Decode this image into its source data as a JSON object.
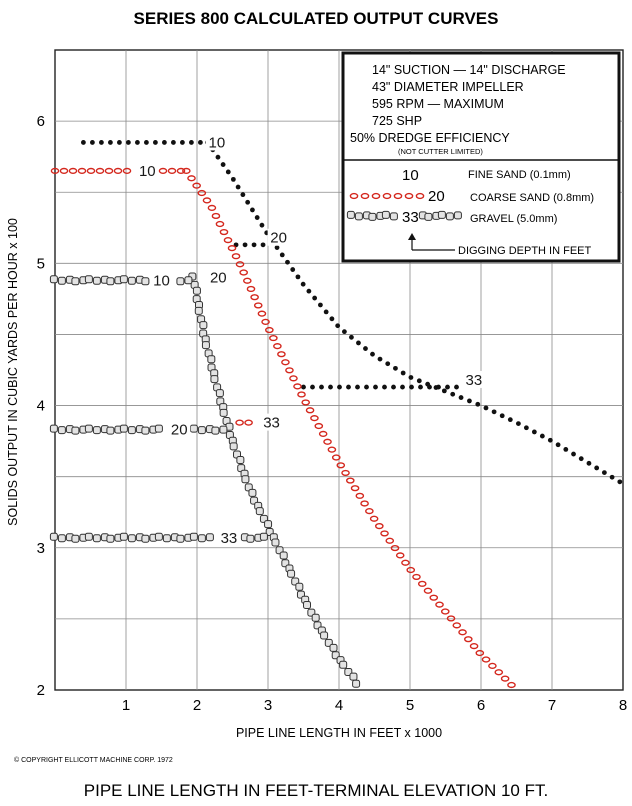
{
  "title": "SERIES 800 CALCULATED OUTPUT CURVES",
  "copyright": "© COPYRIGHT ELLICOTT MACHINE CORP. 1972",
  "bottom_caption": "PIPE LINE LENGTH IN FEET-TERMINAL ELEVATION 10 FT.",
  "specs": [
    "14\" SUCTION — 14\" DISCHARGE",
    "43\" DIAMETER IMPELLER",
    "595 RPM — MAXIMUM",
    "725 SHP",
    "50% DREDGE EFFICIENCY"
  ],
  "specs_note": "(NOT CUTTER LIMITED)",
  "legend": {
    "fine": {
      "symbol": "10",
      "label": "FINE SAND (0.1mm)"
    },
    "coarse": {
      "symbol": "20",
      "label": "COARSE SAND (0.8mm)"
    },
    "gravel": {
      "symbol": "33",
      "label": "GRAVEL (5.0mm)"
    },
    "depth": {
      "label": "DIGGING DEPTH IN FEET"
    }
  },
  "colors": {
    "fine": "#111111",
    "coarse": "#d4271d",
    "gravel": "#555555"
  },
  "chart_data": {
    "type": "line",
    "title": "SERIES 800 CALCULATED OUTPUT CURVES",
    "xlabel": "PIPE LINE LENGTH IN FEET x 1000",
    "ylabel": "SOLIDS OUTPUT IN CUBIC YARDS PER HOUR x 100",
    "xlim": [
      0,
      8
    ],
    "ylim": [
      2,
      6.5
    ],
    "x_ticks": [
      "1",
      "2",
      "3",
      "4",
      "5",
      "6",
      "7",
      "8"
    ],
    "y_ticks": [
      "2",
      "3",
      "4",
      "5",
      "6"
    ],
    "grid": true,
    "series": [
      {
        "name": "FINE SAND (0.1mm)",
        "material": "fine",
        "points": [
          [
            2.15,
            5.85
          ],
          [
            2.5,
            5.6
          ],
          [
            3.0,
            5.2
          ],
          [
            3.5,
            4.85
          ],
          [
            4.0,
            4.55
          ],
          [
            4.5,
            4.35
          ],
          [
            5.0,
            4.2
          ],
          [
            5.5,
            4.1
          ],
          [
            6.0,
            4.0
          ],
          [
            6.5,
            3.88
          ],
          [
            7.0,
            3.75
          ],
          [
            7.5,
            3.6
          ],
          [
            8.0,
            3.45
          ]
        ],
        "depth_branches": [
          {
            "depth": "10",
            "points": [
              [
                0.4,
                5.85
              ],
              [
                2.15,
                5.85
              ]
            ],
            "label_at": [
              2.28,
              5.85
            ]
          },
          {
            "depth": "20",
            "points": [
              [
                2.55,
                5.13
              ],
              [
                3.05,
                5.13
              ]
            ],
            "label_at": [
              3.15,
              5.18
            ]
          },
          {
            "depth": "33",
            "points": [
              [
                3.5,
                4.13
              ],
              [
                6.1,
                4.13
              ]
            ],
            "label_at": [
              5.9,
              4.18
            ]
          }
        ]
      },
      {
        "name": "COARSE SAND (0.8mm)",
        "material": "coarse",
        "points": [
          [
            1.85,
            5.65
          ],
          [
            2.2,
            5.4
          ],
          [
            2.6,
            5.0
          ],
          [
            3.0,
            4.55
          ],
          [
            3.5,
            4.05
          ],
          [
            4.0,
            3.6
          ],
          [
            4.5,
            3.2
          ],
          [
            5.0,
            2.85
          ],
          [
            5.5,
            2.55
          ],
          [
            6.0,
            2.25
          ],
          [
            6.5,
            2.0
          ]
        ],
        "depth_branches": [
          {
            "depth": "10",
            "points": [
              [
                0.0,
                5.65
              ],
              [
                1.85,
                5.65
              ]
            ],
            "label_at": [
              1.3,
              5.65
            ]
          },
          {
            "depth": "20",
            "points": [
              [
                2.12,
                4.9
              ],
              [
                2.55,
                4.9
              ]
            ],
            "label_at": [
              2.3,
              4.9
            ]
          },
          {
            "depth": "33",
            "points": [
              [
                2.6,
                3.88
              ],
              [
                3.2,
                3.88
              ]
            ],
            "label_at": [
              3.05,
              3.88
            ]
          }
        ]
      },
      {
        "name": "GRAVEL (5.0mm)",
        "material": "gravel",
        "points": [
          [
            1.95,
            4.9
          ],
          [
            2.1,
            4.5
          ],
          [
            2.3,
            4.1
          ],
          [
            2.5,
            3.75
          ],
          [
            2.75,
            3.4
          ],
          [
            3.0,
            3.15
          ],
          [
            3.25,
            2.9
          ],
          [
            3.5,
            2.65
          ],
          [
            3.75,
            2.42
          ],
          [
            4.0,
            2.22
          ],
          [
            4.25,
            2.05
          ]
        ],
        "depth_branches": [
          {
            "depth": "10",
            "points": [
              [
                0.0,
                4.88
              ],
              [
                1.95,
                4.88
              ]
            ],
            "label_at": [
              1.5,
              4.88
            ]
          },
          {
            "depth": "20",
            "points": [
              [
                0.0,
                3.83
              ],
              [
                2.45,
                3.83
              ]
            ],
            "label_at": [
              1.75,
              3.83
            ]
          },
          {
            "depth": "33",
            "points": [
              [
                0.0,
                3.07
              ],
              [
                3.0,
                3.07
              ]
            ],
            "label_at": [
              2.45,
              3.07
            ]
          }
        ]
      }
    ]
  }
}
